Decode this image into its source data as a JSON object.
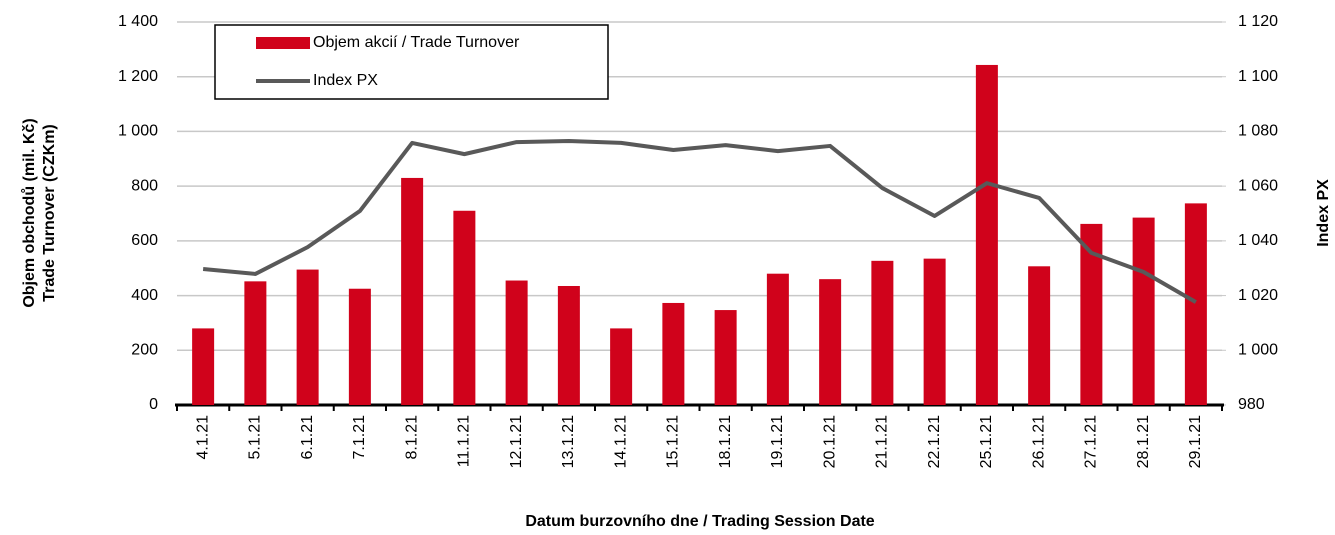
{
  "chart_data": {
    "type": "bar_line",
    "categories": [
      "4.1.21",
      "5.1.21",
      "6.1.21",
      "7.1.21",
      "8.1.21",
      "11.1.21",
      "12.1.21",
      "13.1.21",
      "14.1.21",
      "15.1.21",
      "18.1.21",
      "19.1.21",
      "20.1.21",
      "21.1.21",
      "22.1.21",
      "25.1.21",
      "26.1.21",
      "27.1.21",
      "28.1.21",
      "29.1.21"
    ],
    "series": [
      {
        "name": "Objem akcií / Trade Turnover",
        "type": "bar",
        "color": "#d0021b",
        "values": [
          280,
          452,
          495,
          425,
          830,
          710,
          455,
          435,
          280,
          373,
          347,
          480,
          460,
          527,
          535,
          1243,
          507,
          662,
          685,
          737
        ]
      },
      {
        "name": "Index PX",
        "type": "line",
        "axis": "y2",
        "color": "#595959",
        "values": [
          1029.7,
          1027.9,
          1037.7,
          1050.9,
          1075.8,
          1071.7,
          1076.1,
          1076.5,
          1075.8,
          1073.2,
          1075.0,
          1072.8,
          1074.7,
          1059.3,
          1049.1,
          1061.1,
          1055.7,
          1035.6,
          1028.6,
          1017.6
        ]
      }
    ],
    "ylim": [
      0,
      1400
    ],
    "yticks": [
      0,
      200,
      400,
      600,
      800,
      {
        "value": 1000,
        "label": "1 000"
      },
      {
        "value": 1200,
        "label": "1 200"
      },
      {
        "value": 1400,
        "label": "1 400"
      }
    ],
    "y2lim": [
      980,
      1120
    ],
    "y2ticks": [
      980,
      {
        "value": 1000,
        "label": "1 000"
      },
      {
        "value": 1020,
        "label": "1 020"
      },
      {
        "value": 1040,
        "label": "1 040"
      },
      {
        "value": 1060,
        "label": "1 060"
      },
      {
        "value": 1080,
        "label": "1 080"
      },
      {
        "value": 1100,
        "label": "1 100"
      },
      {
        "value": 1120,
        "label": "1 120"
      }
    ],
    "ylabel": [
      "Objem obchodů (mil. Kč)",
      "Trade Turnover (CZKm)"
    ],
    "y2label": "Index PX",
    "xlabel": "Datum burzovního dne / Trading Session Date",
    "grid": true,
    "legend": "upper left"
  }
}
